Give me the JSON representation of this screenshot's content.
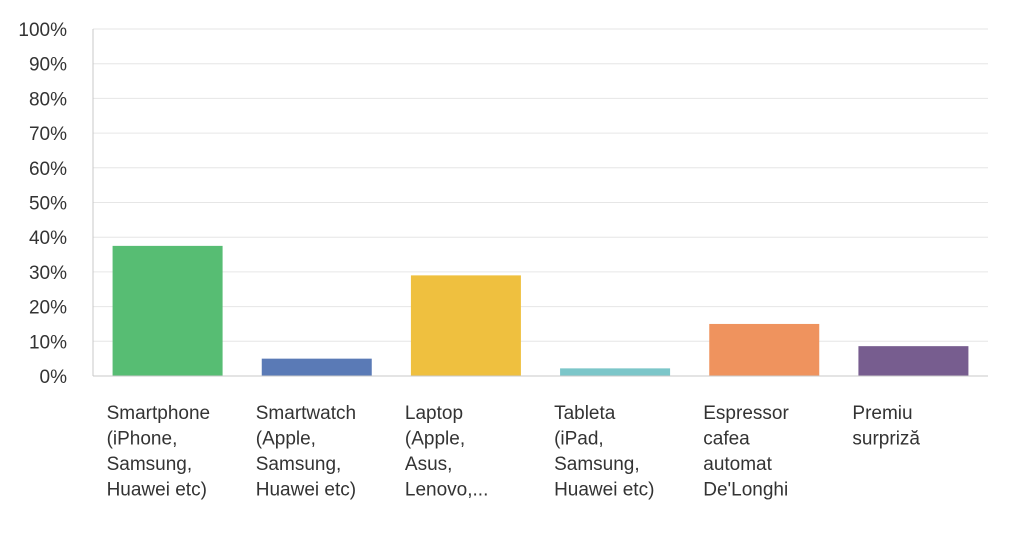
{
  "chart_data": {
    "type": "bar",
    "categories": [
      [
        "Smartphone",
        "(iPhone,",
        "Samsung,",
        "Huawei etc)"
      ],
      [
        "Smartwatch",
        "(Apple,",
        "Samsung,",
        "Huawei etc)"
      ],
      [
        "Laptop",
        "(Apple,",
        "Asus,",
        "Lenovo,..."
      ],
      [
        "Tableta",
        "(iPad,",
        "Samsung,",
        "Huawei etc)"
      ],
      [
        "Espressor",
        "cafea",
        "automat",
        "De'Longhi"
      ],
      [
        "Premiu",
        "surpriză"
      ]
    ],
    "values": [
      37.5,
      5,
      29,
      2.2,
      15,
      8.6
    ],
    "colors": [
      "#57bd73",
      "#5a7ab6",
      "#efc03f",
      "#7cc6c9",
      "#ef935e",
      "#775d8f"
    ],
    "ylim": [
      0,
      100
    ],
    "yticks": [
      "0%",
      "10%",
      "20%",
      "30%",
      "40%",
      "50%",
      "60%",
      "70%",
      "80%",
      "90%",
      "100%"
    ],
    "grid": true,
    "title": "",
    "xlabel": "",
    "ylabel": ""
  }
}
